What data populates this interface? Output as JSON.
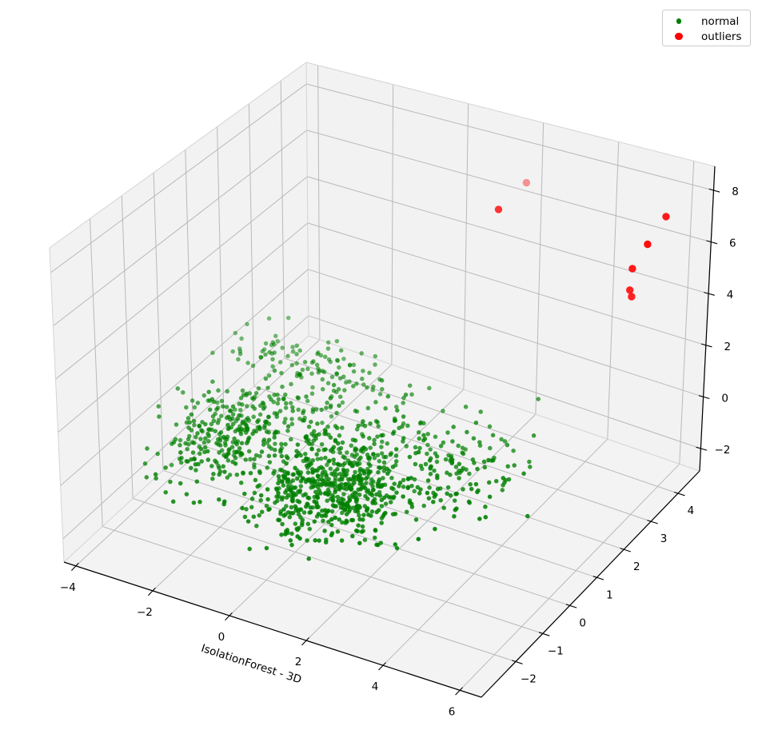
{
  "chart_data": {
    "type": "scatter3d",
    "xlabel": "IsolationForest - 3D",
    "axes": {
      "x": {
        "range": [
          -4.31,
          6.56
        ],
        "ticks": [
          -4,
          -2,
          0,
          2,
          4,
          6
        ]
      },
      "y": {
        "range": [
          -3.27,
          4.8
        ],
        "ticks": [
          -2,
          -1,
          0,
          1,
          2,
          3,
          4
        ]
      },
      "z": {
        "range": [
          -2.87,
          8.93
        ],
        "ticks": [
          -2,
          0,
          2,
          4,
          6,
          8
        ]
      }
    },
    "series": [
      {
        "name": "normal",
        "color": "#008000",
        "marker_radius": 2.75,
        "count": 1275,
        "seed": 42,
        "clusters": [
          {
            "center": [
              0.2,
              -0.1,
              -1.45
            ],
            "std": [
              0.75,
              0.75,
              0.45
            ],
            "count": 460
          },
          {
            "center": [
              0.1,
              0.6,
              -0.7
            ],
            "std": [
              1.6,
              1.0,
              0.5
            ],
            "count": 280
          },
          {
            "center": [
              -2.7,
              0.3,
              -0.9
            ],
            "std": [
              0.75,
              0.8,
              0.45
            ],
            "count": 300
          },
          {
            "center": [
              -2.4,
              2.85,
              -0.9
            ],
            "std": [
              1.15,
              0.3,
              0.22
            ],
            "count": 105
          },
          {
            "center": [
              2.4,
              1.2,
              -0.9
            ],
            "std": [
              0.85,
              0.8,
              0.45
            ],
            "count": 130
          }
        ]
      },
      {
        "name": "outliers",
        "color": "#ff0000",
        "marker_radius": 4.7,
        "points": [
          [
            2.3,
            3.9,
            7.5
          ],
          [
            2.6,
            2.6,
            7.8
          ],
          [
            6.35,
            3.45,
            8.17
          ],
          [
            6.38,
            2.8,
            7.73
          ],
          [
            6.0,
            2.8,
            6.66
          ],
          [
            5.95,
            2.8,
            5.83
          ],
          [
            6.0,
            2.8,
            5.6
          ]
        ]
      }
    ],
    "legend": {
      "items": [
        "normal",
        "outliers"
      ]
    }
  }
}
